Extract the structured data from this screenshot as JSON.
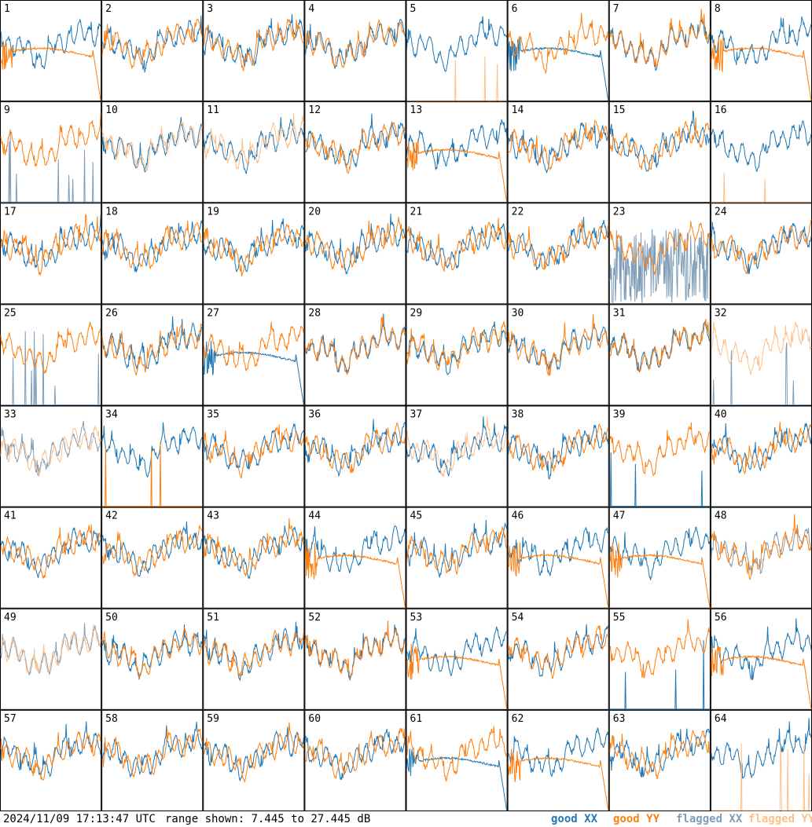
{
  "footer": {
    "timestamp": "2024/11/09 17:13:47 UTC",
    "range_text": "range shown: 7.445 to 27.445 dB"
  },
  "legend": [
    {
      "key": "good_xx",
      "label": "good XX",
      "color": "#1f77b4"
    },
    {
      "key": "good_yy",
      "label": "good YY",
      "color": "#ff7f0e"
    },
    {
      "key": "flagged_xx",
      "label": "flagged XX",
      "color": "#7f9db8"
    },
    {
      "key": "flagged_yy",
      "label": "flagged YY",
      "color": "#ffc08a"
    }
  ],
  "chart_data": {
    "type": "line",
    "grid": {
      "rows": 8,
      "cols": 8
    },
    "ylim": [
      7.445,
      27.445
    ],
    "yunit": "dB",
    "series_names": [
      "good XX",
      "good YY",
      "flagged XX",
      "flagged YY"
    ],
    "panels": [
      {
        "id": "1",
        "xx": "good",
        "yy": "good",
        "xx_shape": "ripple",
        "yy_shape": "decay"
      },
      {
        "id": "2",
        "xx": "good",
        "yy": "good",
        "xx_shape": "ripple",
        "yy_shape": "ripple"
      },
      {
        "id": "3",
        "xx": "good",
        "yy": "good",
        "xx_shape": "ripple",
        "yy_shape": "ripple"
      },
      {
        "id": "4",
        "xx": "good",
        "yy": "good",
        "xx_shape": "ripple",
        "yy_shape": "ripple"
      },
      {
        "id": "5",
        "xx": "good",
        "yy": "flagged",
        "xx_shape": "ripple",
        "yy_shape": "spikes"
      },
      {
        "id": "6",
        "xx": "good",
        "yy": "good",
        "xx_shape": "decay",
        "yy_shape": "ripple"
      },
      {
        "id": "7",
        "xx": "good",
        "yy": "good",
        "xx_shape": "ripple",
        "yy_shape": "ripple"
      },
      {
        "id": "8",
        "xx": "good",
        "yy": "good",
        "xx_shape": "ripple",
        "yy_shape": "decay"
      },
      {
        "id": "9",
        "xx": "flagged",
        "yy": "good",
        "xx_shape": "spikes",
        "yy_shape": "ripple"
      },
      {
        "id": "10",
        "xx": "good",
        "yy": "flagged",
        "xx_shape": "ripple",
        "yy_shape": "ripple"
      },
      {
        "id": "11",
        "xx": "good",
        "yy": "flagged",
        "xx_shape": "ripple",
        "yy_shape": "ripple"
      },
      {
        "id": "12",
        "xx": "good",
        "yy": "good",
        "xx_shape": "ripple",
        "yy_shape": "ripple"
      },
      {
        "id": "13",
        "xx": "good",
        "yy": "good",
        "xx_shape": "ripple",
        "yy_shape": "decay"
      },
      {
        "id": "14",
        "xx": "good",
        "yy": "good",
        "xx_shape": "ripple",
        "yy_shape": "ripple"
      },
      {
        "id": "15",
        "xx": "good",
        "yy": "good",
        "xx_shape": "ripple",
        "yy_shape": "ripple"
      },
      {
        "id": "16",
        "xx": "good",
        "yy": "flagged",
        "xx_shape": "ripple",
        "yy_shape": "spikes"
      },
      {
        "id": "17",
        "xx": "good",
        "yy": "good",
        "xx_shape": "ripple",
        "yy_shape": "ripple"
      },
      {
        "id": "18",
        "xx": "good",
        "yy": "good",
        "xx_shape": "ripple",
        "yy_shape": "ripple"
      },
      {
        "id": "19",
        "xx": "good",
        "yy": "good",
        "xx_shape": "ripple",
        "yy_shape": "ripple"
      },
      {
        "id": "20",
        "xx": "good",
        "yy": "good",
        "xx_shape": "ripple",
        "yy_shape": "ripple"
      },
      {
        "id": "21",
        "xx": "good",
        "yy": "good",
        "xx_shape": "ripple",
        "yy_shape": "ripple"
      },
      {
        "id": "22",
        "xx": "good",
        "yy": "good",
        "xx_shape": "ripple",
        "yy_shape": "ripple"
      },
      {
        "id": "23",
        "xx": "flagged",
        "yy": "good",
        "xx_shape": "noise",
        "yy_shape": "ripple"
      },
      {
        "id": "24",
        "xx": "good",
        "yy": "good",
        "xx_shape": "ripple",
        "yy_shape": "ripple"
      },
      {
        "id": "25",
        "xx": "flagged",
        "yy": "good",
        "xx_shape": "spikes",
        "yy_shape": "ripple"
      },
      {
        "id": "26",
        "xx": "good",
        "yy": "good",
        "xx_shape": "ripple",
        "yy_shape": "ripple"
      },
      {
        "id": "27",
        "xx": "good",
        "yy": "good",
        "xx_shape": "decay",
        "yy_shape": "ripple"
      },
      {
        "id": "28",
        "xx": "good",
        "yy": "good",
        "xx_shape": "ripple",
        "yy_shape": "ripple"
      },
      {
        "id": "29",
        "xx": "good",
        "yy": "good",
        "xx_shape": "ripple",
        "yy_shape": "ripple"
      },
      {
        "id": "30",
        "xx": "good",
        "yy": "good",
        "xx_shape": "ripple",
        "yy_shape": "ripple"
      },
      {
        "id": "31",
        "xx": "good",
        "yy": "good",
        "xx_shape": "ripple",
        "yy_shape": "ripple"
      },
      {
        "id": "32",
        "xx": "flagged",
        "yy": "flagged",
        "xx_shape": "spikes",
        "yy_shape": "ripple"
      },
      {
        "id": "33",
        "xx": "flagged",
        "yy": "flagged",
        "xx_shape": "ripple",
        "yy_shape": "ripple"
      },
      {
        "id": "34",
        "xx": "good",
        "yy": "good",
        "xx_shape": "ripple",
        "yy_shape": "spikes"
      },
      {
        "id": "35",
        "xx": "good",
        "yy": "good",
        "xx_shape": "ripple",
        "yy_shape": "ripple"
      },
      {
        "id": "36",
        "xx": "good",
        "yy": "good",
        "xx_shape": "ripple",
        "yy_shape": "ripple"
      },
      {
        "id": "37",
        "xx": "good",
        "yy": "flagged",
        "xx_shape": "ripple",
        "yy_shape": "ripple"
      },
      {
        "id": "38",
        "xx": "good",
        "yy": "good",
        "xx_shape": "ripple",
        "yy_shape": "ripple"
      },
      {
        "id": "39",
        "xx": "good",
        "yy": "good",
        "xx_shape": "spikes",
        "yy_shape": "ripple"
      },
      {
        "id": "40",
        "xx": "good",
        "yy": "good",
        "xx_shape": "ripple",
        "yy_shape": "ripple"
      },
      {
        "id": "41",
        "xx": "good",
        "yy": "good",
        "xx_shape": "ripple",
        "yy_shape": "ripple"
      },
      {
        "id": "42",
        "xx": "good",
        "yy": "good",
        "xx_shape": "ripple",
        "yy_shape": "ripple"
      },
      {
        "id": "43",
        "xx": "good",
        "yy": "good",
        "xx_shape": "ripple",
        "yy_shape": "ripple"
      },
      {
        "id": "44",
        "xx": "good",
        "yy": "good",
        "xx_shape": "ripple",
        "yy_shape": "decay"
      },
      {
        "id": "45",
        "xx": "good",
        "yy": "good",
        "xx_shape": "ripple",
        "yy_shape": "ripple"
      },
      {
        "id": "46",
        "xx": "good",
        "yy": "good",
        "xx_shape": "ripple",
        "yy_shape": "decay"
      },
      {
        "id": "47",
        "xx": "good",
        "yy": "good",
        "xx_shape": "ripple",
        "yy_shape": "decay"
      },
      {
        "id": "48",
        "xx": "flagged",
        "yy": "good",
        "xx_shape": "ripple",
        "yy_shape": "ripple"
      },
      {
        "id": "49",
        "xx": "flagged",
        "yy": "flagged",
        "xx_shape": "ripple",
        "yy_shape": "ripple"
      },
      {
        "id": "50",
        "xx": "good",
        "yy": "good",
        "xx_shape": "ripple",
        "yy_shape": "ripple"
      },
      {
        "id": "51",
        "xx": "good",
        "yy": "good",
        "xx_shape": "ripple",
        "yy_shape": "ripple"
      },
      {
        "id": "52",
        "xx": "good",
        "yy": "good",
        "xx_shape": "ripple",
        "yy_shape": "ripple"
      },
      {
        "id": "53",
        "xx": "good",
        "yy": "good",
        "xx_shape": "ripple",
        "yy_shape": "decay"
      },
      {
        "id": "54",
        "xx": "good",
        "yy": "good",
        "xx_shape": "ripple",
        "yy_shape": "ripple"
      },
      {
        "id": "55",
        "xx": "good",
        "yy": "good",
        "xx_shape": "spikes",
        "yy_shape": "ripple"
      },
      {
        "id": "56",
        "xx": "good",
        "yy": "good",
        "xx_shape": "ripple",
        "yy_shape": "decay"
      },
      {
        "id": "57",
        "xx": "good",
        "yy": "good",
        "xx_shape": "ripple",
        "yy_shape": "ripple"
      },
      {
        "id": "58",
        "xx": "good",
        "yy": "good",
        "xx_shape": "ripple",
        "yy_shape": "ripple"
      },
      {
        "id": "59",
        "xx": "good",
        "yy": "good",
        "xx_shape": "ripple",
        "yy_shape": "ripple"
      },
      {
        "id": "60",
        "xx": "good",
        "yy": "good",
        "xx_shape": "ripple",
        "yy_shape": "ripple"
      },
      {
        "id": "61",
        "xx": "good",
        "yy": "good",
        "xx_shape": "decay",
        "yy_shape": "ripple"
      },
      {
        "id": "62",
        "xx": "good",
        "yy": "good",
        "xx_shape": "ripple",
        "yy_shape": "decay"
      },
      {
        "id": "63",
        "xx": "good",
        "yy": "good",
        "xx_shape": "ripple",
        "yy_shape": "ripple"
      },
      {
        "id": "64",
        "xx": "good",
        "yy": "flagged",
        "xx_shape": "ripple",
        "yy_shape": "spikes"
      }
    ]
  }
}
